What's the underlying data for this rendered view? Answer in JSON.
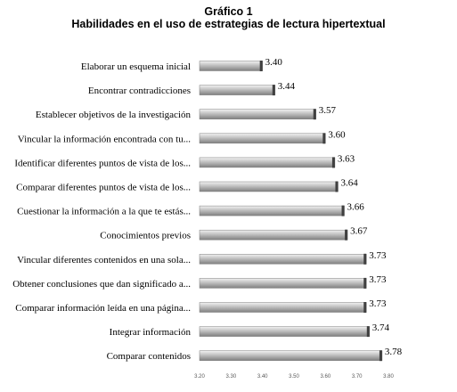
{
  "header": {
    "title": "Gráfico 1",
    "subtitle": "Habilidades en el uso de estrategias de lectura hipertextual"
  },
  "colors": {
    "bar_light": "#f2f2f2",
    "bar_mid": "#bfbfbf",
    "bar_dark": "#7f7f7f",
    "bar_cap": "#404040",
    "tick_text": "#595959"
  },
  "chart_data": {
    "type": "bar",
    "orientation": "horizontal",
    "categories": [
      "Elaborar un esquema inicial",
      "Encontrar contradicciones",
      "Establecer objetivos de la investigación",
      "Vincular la información encontrada con tu...",
      "Identificar diferentes puntos de vista de los...",
      "Comparar diferentes puntos de vista de los...",
      "Cuestionar la información a la que te estás...",
      "Conocimientos previos",
      "Vincular diferentes contenidos en una sola...",
      "Obtener conclusiones que dan significado a...",
      "Comparar información leída en una página...",
      "Integrar información",
      "Comparar contenidos"
    ],
    "values": [
      3.4,
      3.44,
      3.57,
      3.6,
      3.63,
      3.64,
      3.66,
      3.67,
      3.73,
      3.73,
      3.73,
      3.74,
      3.78
    ],
    "value_labels": [
      "3.40",
      "3.44",
      "3.57",
      "3.60",
      "3.63",
      "3.64",
      "3.66",
      "3.67",
      "3.73",
      "3.73",
      "3.73",
      "3.74",
      "3.78"
    ],
    "xlim": [
      3.2,
      3.8
    ],
    "xticks": [
      3.2,
      3.3,
      3.4,
      3.5,
      3.6,
      3.7,
      3.8
    ],
    "xtick_labels": [
      "3.20",
      "3.30",
      "3.40",
      "3.50",
      "3.60",
      "3.70",
      "3.80"
    ],
    "grid": false,
    "legend": "none"
  }
}
